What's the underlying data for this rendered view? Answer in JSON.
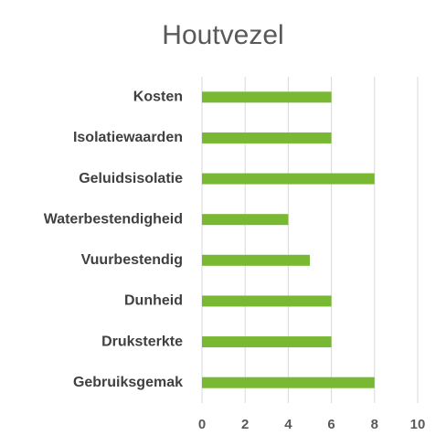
{
  "chart_data": {
    "type": "bar",
    "orientation": "horizontal",
    "title": "Houtvezel",
    "categories": [
      "Kosten",
      "Isolatiewaarden",
      "Geluidsisolatie",
      "Waterbestendigheid",
      "Vuurbestendig",
      "Dunheid",
      "Druksterkte",
      "Gebruiksgemak"
    ],
    "values": [
      6,
      6,
      8,
      4,
      5,
      6,
      6,
      8
    ],
    "color": "#78b833",
    "xlim": [
      0,
      10
    ],
    "xticks": [
      0,
      2,
      4,
      6,
      8,
      10
    ],
    "grid": true
  }
}
